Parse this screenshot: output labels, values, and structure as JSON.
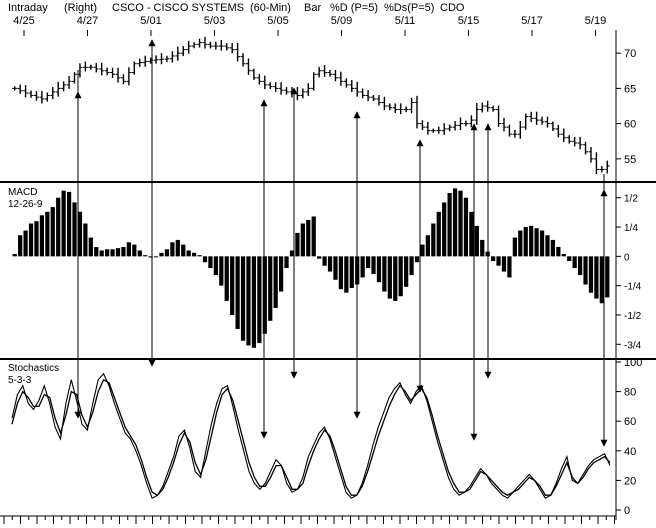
{
  "header": {
    "interval": "Intraday",
    "scale_side": "(Right)",
    "symbol_title": "CSCO - CISCO SYSTEMS",
    "period": "(60-Min)",
    "bar_label": "Bar",
    "pctD": "%D (P=5)",
    "pctDs": "%Ds(P=5)",
    "indicator": "CDO"
  },
  "colors": {
    "ink": "#000000",
    "background": "#ffffff"
  },
  "chart_data": [
    {
      "type": "ohlc",
      "panel": "price",
      "x_ticks": [
        "4/25",
        "4/27",
        "5/01",
        "5/03",
        "5/05",
        "5/09",
        "5/11",
        "5/15",
        "5/17",
        "5/19"
      ],
      "y_ticks": [
        55,
        60,
        65,
        70
      ],
      "ylim": [
        52,
        73
      ],
      "bars": 110,
      "close_path": [
        [
          0,
          65
        ],
        [
          3,
          64
        ],
        [
          5,
          63.5
        ],
        [
          8,
          65
        ],
        [
          10,
          66
        ],
        [
          12,
          68
        ],
        [
          14,
          68
        ],
        [
          16,
          67.5
        ],
        [
          18,
          67
        ],
        [
          20,
          66
        ],
        [
          22,
          68.5
        ],
        [
          25,
          69
        ],
        [
          28,
          69.2
        ],
        [
          30,
          70
        ],
        [
          32,
          71
        ],
        [
          34,
          71.5
        ],
        [
          36,
          71
        ],
        [
          38,
          71
        ],
        [
          40,
          70.5
        ],
        [
          42,
          68.5
        ],
        [
          44,
          66.5
        ],
        [
          46,
          65.5
        ],
        [
          48,
          65
        ],
        [
          50,
          64.5
        ],
        [
          52,
          64
        ],
        [
          54,
          65
        ],
        [
          55,
          67
        ],
        [
          56,
          67.5
        ],
        [
          58,
          67
        ],
        [
          60,
          66
        ],
        [
          62,
          65
        ],
        [
          64,
          64
        ],
        [
          66,
          63.5
        ],
        [
          68,
          62.5
        ],
        [
          70,
          62
        ],
        [
          72,
          62
        ],
        [
          73,
          63
        ],
        [
          74,
          60
        ],
        [
          76,
          59
        ],
        [
          78,
          59
        ],
        [
          80,
          59.5
        ],
        [
          82,
          60
        ],
        [
          83,
          60
        ],
        [
          84,
          60.5
        ],
        [
          85,
          62
        ],
        [
          86,
          62.5
        ],
        [
          88,
          62
        ],
        [
          89,
          60
        ],
        [
          90,
          59.5
        ],
        [
          91,
          58.5
        ],
        [
          92,
          58.5
        ],
        [
          93,
          59.5
        ],
        [
          94,
          61
        ],
        [
          96,
          60.5
        ],
        [
          98,
          60
        ],
        [
          100,
          58.5
        ],
        [
          102,
          57.5
        ],
        [
          104,
          57
        ],
        [
          105,
          56
        ],
        [
          106,
          55
        ],
        [
          107,
          53.5
        ],
        [
          108,
          53.5
        ],
        [
          109,
          54
        ],
        [
          110,
          54.5
        ]
      ],
      "range": 0.7
    },
    {
      "type": "bar",
      "panel": "macd",
      "label": "MACD",
      "params": "12-26-9",
      "y_ticks": [
        "1/2",
        "1/4",
        "0",
        "-1/4",
        "-1/2",
        "-3/4"
      ],
      "y_tick_values": [
        0.5,
        0.25,
        0,
        -0.25,
        -0.5,
        -0.75
      ],
      "ylim": [
        -0.85,
        0.6
      ],
      "values": [
        0.02,
        0.18,
        0.22,
        0.28,
        0.3,
        0.35,
        0.38,
        0.42,
        0.5,
        0.56,
        0.55,
        0.46,
        0.38,
        0.28,
        0.16,
        0.08,
        0.05,
        0.06,
        0.06,
        0.07,
        0.08,
        0.12,
        0.1,
        0.05,
        0.01,
        -0.01,
        0.0,
        0.03,
        0.06,
        0.12,
        0.14,
        0.1,
        0.05,
        0.03,
        0.01,
        -0.05,
        -0.1,
        -0.16,
        -0.25,
        -0.38,
        -0.5,
        -0.62,
        -0.72,
        -0.76,
        -0.78,
        -0.74,
        -0.66,
        -0.55,
        -0.44,
        -0.3,
        -0.1,
        0.05,
        0.2,
        0.28,
        0.31,
        0.34,
        -0.02,
        -0.08,
        -0.13,
        -0.2,
        -0.28,
        -0.31,
        -0.27,
        -0.24,
        -0.18,
        -0.1,
        -0.15,
        -0.22,
        -0.3,
        -0.36,
        -0.38,
        -0.34,
        -0.26,
        -0.16,
        -0.05,
        0.1,
        0.18,
        0.28,
        0.38,
        0.46,
        0.54,
        0.58,
        0.56,
        0.5,
        0.38,
        0.26,
        0.14,
        0.04,
        -0.04,
        -0.08,
        -0.13,
        -0.18,
        0.16,
        0.22,
        0.25,
        0.26,
        0.24,
        0.22,
        0.18,
        0.14,
        0.08,
        0.02,
        -0.04,
        -0.1,
        -0.16,
        -0.24,
        -0.31,
        -0.36,
        -0.4,
        -0.35
      ]
    },
    {
      "type": "line",
      "panel": "stochastics",
      "label": "Stochastics",
      "params": "5-3-3",
      "y_ticks": [
        0,
        20,
        40,
        60,
        80,
        100
      ],
      "ylim": [
        0,
        100
      ],
      "series": [
        {
          "values": [
            62,
            78,
            84,
            72,
            68,
            74,
            84,
            72,
            56,
            48,
            72,
            88,
            74,
            58,
            54,
            72,
            88,
            92,
            84,
            72,
            62,
            52,
            48,
            40,
            30,
            18,
            8,
            10,
            16,
            26,
            36,
            50,
            54,
            42,
            26,
            22,
            40,
            58,
            72,
            82,
            84,
            70,
            54,
            40,
            26,
            18,
            14,
            18,
            26,
            34,
            30,
            18,
            12,
            14,
            22,
            36,
            44,
            52,
            56,
            48,
            36,
            24,
            12,
            8,
            10,
            18,
            30,
            44,
            56,
            66,
            76,
            82,
            86,
            78,
            72,
            80,
            84,
            74,
            60,
            46,
            34,
            22,
            14,
            10,
            12,
            16,
            22,
            28,
            24,
            18,
            14,
            10,
            8,
            12,
            16,
            20,
            24,
            20,
            14,
            8,
            10,
            18,
            28,
            36,
            20,
            18,
            24,
            30,
            34,
            36,
            38,
            30
          ]
        },
        {
          "values": [
            58,
            72,
            80,
            76,
            70,
            70,
            78,
            76,
            62,
            52,
            64,
            80,
            78,
            64,
            56,
            66,
            80,
            88,
            86,
            76,
            66,
            56,
            50,
            44,
            34,
            22,
            12,
            10,
            14,
            22,
            32,
            44,
            52,
            46,
            32,
            24,
            34,
            50,
            66,
            78,
            82,
            74,
            60,
            46,
            32,
            22,
            16,
            16,
            22,
            30,
            30,
            22,
            14,
            14,
            18,
            30,
            40,
            48,
            54,
            50,
            40,
            28,
            16,
            10,
            10,
            16,
            26,
            38,
            50,
            60,
            70,
            78,
            84,
            80,
            74,
            78,
            82,
            76,
            64,
            50,
            38,
            26,
            18,
            12,
            12,
            14,
            20,
            26,
            24,
            20,
            16,
            12,
            10,
            12,
            14,
            18,
            22,
            20,
            16,
            10,
            10,
            16,
            24,
            32,
            22,
            18,
            22,
            28,
            32,
            34,
            36,
            32
          ]
        }
      ]
    }
  ],
  "annotations": {
    "arrow_count": 11
  }
}
